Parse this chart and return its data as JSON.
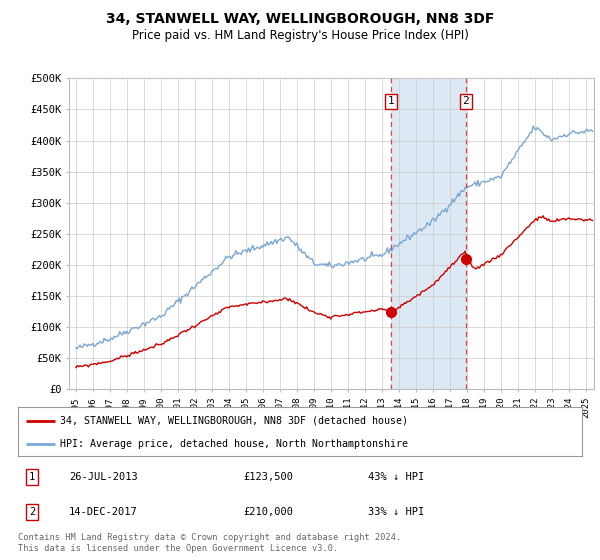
{
  "title": "34, STANWELL WAY, WELLINGBOROUGH, NN8 3DF",
  "subtitle": "Price paid vs. HM Land Registry's House Price Index (HPI)",
  "ylabel_ticks": [
    "£0",
    "£50K",
    "£100K",
    "£150K",
    "£200K",
    "£250K",
    "£300K",
    "£350K",
    "£400K",
    "£450K",
    "£500K"
  ],
  "ylim": [
    0,
    500000
  ],
  "xlim_start": 1994.6,
  "xlim_end": 2025.5,
  "sale1_x": 2013.57,
  "sale1_y": 123500,
  "sale1_label": "1",
  "sale1_date": "26-JUL-2013",
  "sale1_price": "£123,500",
  "sale1_pct": "43% ↓ HPI",
  "sale2_x": 2017.95,
  "sale2_y": 210000,
  "sale2_label": "2",
  "sale2_date": "14-DEC-2017",
  "sale2_price": "£210,000",
  "sale2_pct": "33% ↓ HPI",
  "hpi_color": "#7ba7d4",
  "sale_color": "#cc0000",
  "vline_color": "#dd4444",
  "shade_color": "#dce9f5",
  "legend_label1": "34, STANWELL WAY, WELLINGBOROUGH, NN8 3DF (detached house)",
  "legend_label2": "HPI: Average price, detached house, North Northamptonshire",
  "footer": "Contains HM Land Registry data © Crown copyright and database right 2024.\nThis data is licensed under the Open Government Licence v3.0.",
  "background_color": "#ffffff",
  "grid_color": "#cccccc",
  "xtick_years": [
    1995,
    1996,
    1997,
    1998,
    1999,
    2000,
    2001,
    2002,
    2003,
    2004,
    2005,
    2006,
    2007,
    2008,
    2009,
    2010,
    2011,
    2012,
    2013,
    2014,
    2015,
    2016,
    2017,
    2018,
    2019,
    2020,
    2021,
    2022,
    2023,
    2024,
    2025
  ]
}
